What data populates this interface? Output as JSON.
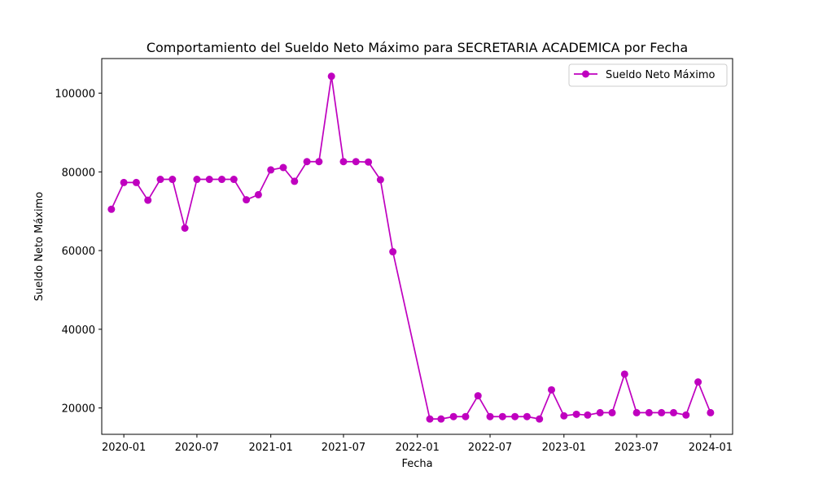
{
  "chart_data": {
    "type": "line",
    "title": "Comportamiento del Sueldo Neto Máximo para SECRETARIA ACADEMICA por Fecha",
    "xlabel": "Fecha",
    "ylabel": "Sueldo Neto Máximo",
    "xlim": [
      "2019-11-07",
      "2024-02-25"
    ],
    "ylim": [
      13300,
      108800
    ],
    "xticks": [
      "2020-01-01",
      "2020-07-01",
      "2021-01-01",
      "2021-07-01",
      "2022-01-01",
      "2022-07-01",
      "2023-01-01",
      "2023-07-01",
      "2024-01-01"
    ],
    "xtick_labels": [
      "2020-01",
      "2020-07",
      "2021-01",
      "2021-07",
      "2022-01",
      "2022-07",
      "2023-01",
      "2023-07",
      "2024-01"
    ],
    "yticks": [
      20000,
      40000,
      60000,
      80000,
      100000
    ],
    "ytick_labels": [
      "20000",
      "40000",
      "60000",
      "80000",
      "100000"
    ],
    "grid": false,
    "legend": "top-right",
    "color": "#bf00bf",
    "series": [
      {
        "name": "Sueldo Neto Máximo",
        "x": [
          "2019-12-01",
          "2020-01-01",
          "2020-02-01",
          "2020-03-01",
          "2020-04-01",
          "2020-05-01",
          "2020-06-01",
          "2020-07-01",
          "2020-08-01",
          "2020-09-01",
          "2020-10-01",
          "2020-11-01",
          "2020-12-01",
          "2021-01-01",
          "2021-02-01",
          "2021-03-01",
          "2021-04-01",
          "2021-05-01",
          "2021-06-01",
          "2021-07-01",
          "2021-08-01",
          "2021-09-01",
          "2021-10-01",
          "2021-11-01",
          "2022-02-01",
          "2022-03-01",
          "2022-04-01",
          "2022-05-01",
          "2022-06-01",
          "2022-07-01",
          "2022-08-01",
          "2022-09-01",
          "2022-10-01",
          "2022-11-01",
          "2022-12-01",
          "2023-01-01",
          "2023-02-01",
          "2023-03-01",
          "2023-04-01",
          "2023-05-01",
          "2023-06-01",
          "2023-07-01",
          "2023-08-01",
          "2023-09-01",
          "2023-10-01",
          "2023-11-01",
          "2023-12-01",
          "2024-01-01"
        ],
        "y": [
          70500,
          77300,
          77300,
          72800,
          78100,
          78100,
          65700,
          78100,
          78100,
          78100,
          78100,
          72900,
          74200,
          80500,
          81100,
          77600,
          82600,
          82600,
          104300,
          82600,
          82600,
          82500,
          78000,
          59700,
          17200,
          17200,
          17800,
          17800,
          23100,
          17800,
          17800,
          17800,
          17800,
          17200,
          24600,
          18000,
          18400,
          18200,
          18800,
          18800,
          28600,
          18800,
          18800,
          18800,
          18800,
          18200,
          26600,
          18800
        ]
      }
    ]
  }
}
